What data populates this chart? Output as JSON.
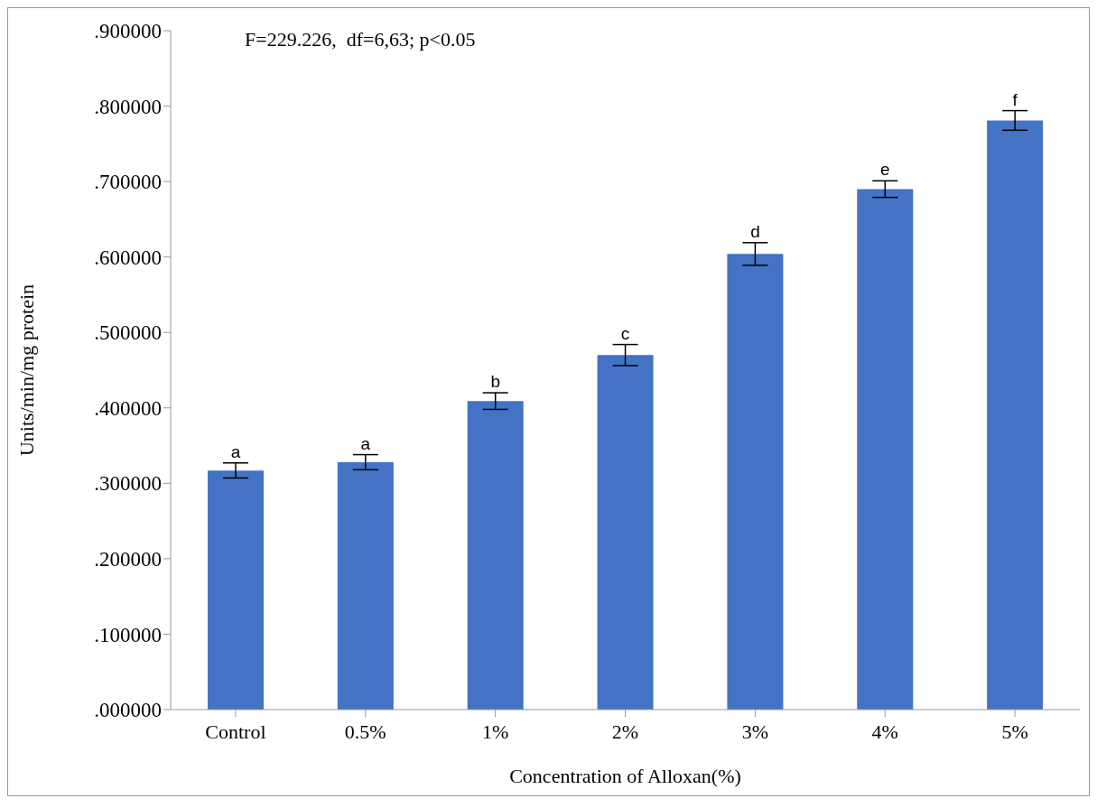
{
  "chart_data": {
    "type": "bar",
    "xlabel": "Concentration of Alloxan(%)",
    "ylabel": "Units/min/mg protein",
    "categories": [
      "Control",
      "0.5%",
      "1%",
      "2%",
      "3%",
      "4%",
      "5%"
    ],
    "values": [
      0.317,
      0.328,
      0.409,
      0.47,
      0.604,
      0.69,
      0.781
    ],
    "errors": [
      0.01,
      0.01,
      0.011,
      0.014,
      0.015,
      0.011,
      0.013
    ],
    "value_labels": [
      "a",
      "a",
      "b",
      "c",
      "d",
      "e",
      "f"
    ],
    "color": "#4472c4",
    "ylim": [
      0,
      0.9
    ],
    "yticks": [
      {
        "value": 0,
        "label": ".000000"
      },
      {
        "value": 0.1,
        "label": ".100000"
      },
      {
        "value": 0.2,
        "label": ".200000"
      },
      {
        "value": 0.3,
        "label": ".300000"
      },
      {
        "value": 0.4,
        "label": ".400000"
      },
      {
        "value": 0.5,
        "label": ".500000"
      },
      {
        "value": 0.6,
        "label": ".600000"
      },
      {
        "value": 0.7,
        "label": ".700000"
      },
      {
        "value": 0.8,
        "label": ".800000"
      },
      {
        "value": 0.9,
        "label": ".900000"
      }
    ],
    "annotations": [
      "F=229.226,  df=6,63; p<0.05"
    ],
    "grid": false,
    "legend": false
  }
}
